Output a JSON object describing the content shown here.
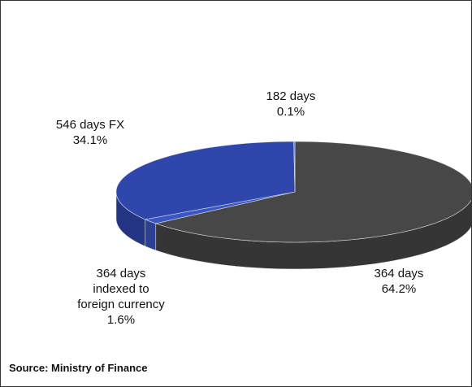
{
  "chart_data": {
    "type": "pie",
    "categories": [
      "364 days",
      "364 days indexed to foreign currency",
      "546 days FX",
      "182 days"
    ],
    "values": [
      64.2,
      1.6,
      34.1,
      0.1
    ],
    "value_labels": [
      "64.2%",
      "1.6%",
      "34.1%",
      "0.1%"
    ],
    "colors": [
      "#474747",
      "#3a56c4",
      "#2f47ad",
      "#5a6fd0"
    ],
    "source": "Source: Ministry of Finance"
  }
}
